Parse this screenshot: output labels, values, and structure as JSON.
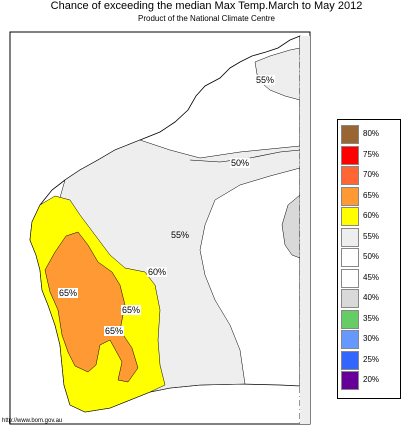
{
  "header": {
    "title": "Chance of exceeding the median Max Temp.March to May 2012",
    "subtitle": "Product of the National Climate Centre"
  },
  "legend": {
    "items": [
      {
        "label": "80%",
        "color": "#996633"
      },
      {
        "label": "75%",
        "color": "#ff0000"
      },
      {
        "label": "70%",
        "color": "#ff6633"
      },
      {
        "label": "65%",
        "color": "#ff9933"
      },
      {
        "label": "60%",
        "color": "#ffff00"
      },
      {
        "label": "55%",
        "color": "#eeeeee"
      },
      {
        "label": "50%",
        "color": "#ffffff"
      },
      {
        "label": "45%",
        "color": "#ffffff"
      },
      {
        "label": "40%",
        "color": "#d9d9d9"
      },
      {
        "label": "35%",
        "color": "#66cc66"
      },
      {
        "label": "30%",
        "color": "#6699ff"
      },
      {
        "label": "25%",
        "color": "#3366ff"
      },
      {
        "label": "20%",
        "color": "#660099"
      }
    ]
  },
  "map_labels": {
    "north_55": "55%",
    "center_50": "50%",
    "mid_55": "55%",
    "east_60": "60%",
    "west_65": "65%",
    "center_65": "65%",
    "south_65": "65%"
  },
  "footer": {
    "url": "http://www.bom.gov.au"
  }
}
